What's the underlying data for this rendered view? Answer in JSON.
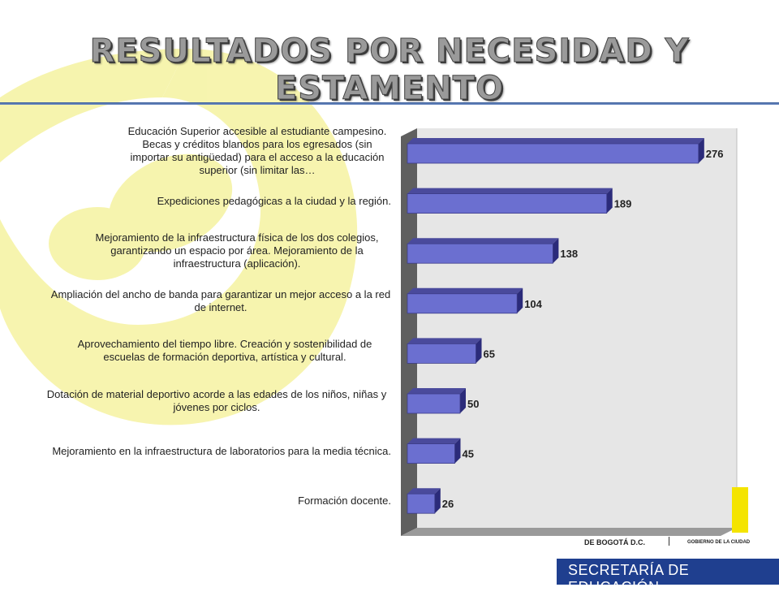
{
  "title": "RESULTADOS POR NECESIDAD Y ESTAMENTO",
  "footer": {
    "department": "SECRETARÍA DE EDUCACIÓN",
    "city": "DE BOGOTÁ D.C.",
    "government": "GOBIERNO DE LA CIUDAD"
  },
  "colors": {
    "bar_front": "#6b6fd0",
    "bar_top": "#4a4a9c",
    "bar_side": "#2b2b7a",
    "plot_bg": "#e6e6e6",
    "wall": "#5f5f5f",
    "accent_yellow": "#f4e400",
    "brand_blue": "#1f3f8f"
  },
  "chart_data": {
    "type": "bar",
    "orientation": "horizontal",
    "style": "3d",
    "xlim": [
      0,
      300
    ],
    "grid": false,
    "legend": "none",
    "categories": [
      "Educación Superior accesible al estudiante campesino. Becas y créditos blandos para los egresados (sin importar su antigüedad) para el acceso a la educación superior (sin limitar las…",
      "Expediciones pedagógicas a la ciudad y la región.",
      "Mejoramiento de la infraestructura física de los dos colegios, garantizando un espacio por área. Mejoramiento de la infraestructura (aplicación).",
      "Ampliación del ancho de banda para garantizar un mejor acceso a la red de internet.",
      "Aprovechamiento del tiempo libre. Creación y sostenibilidad de escuelas de formación deportiva, artística y cultural.",
      "Dotación de material deportivo acorde a las edades de los niños, niñas y jóvenes por ciclos.",
      "Mejoramiento en la infraestructura de laboratorios para la media técnica.",
      "Formación docente."
    ],
    "values": [
      276,
      189,
      138,
      104,
      65,
      50,
      45,
      26
    ],
    "data_labels": [
      "276",
      "189",
      "138",
      "104",
      "65",
      "50",
      "45",
      "26"
    ]
  }
}
